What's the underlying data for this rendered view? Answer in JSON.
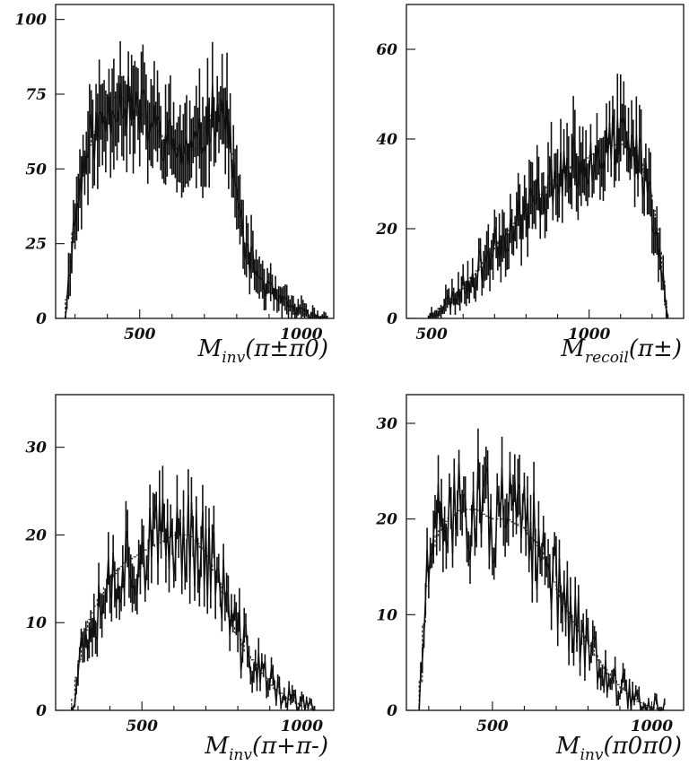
{
  "chart_data": [
    {
      "type": "line",
      "xlabel": {
        "base": "M",
        "sub": "inv",
        "arg": "(π±π0)"
      },
      "x_tick_labels": [
        "500",
        "1000"
      ],
      "y_tick_labels": [
        "0",
        "25",
        "50",
        "75",
        "100"
      ],
      "x_ticks": [
        500,
        1000
      ],
      "y_ticks": [
        0,
        25,
        50,
        75,
        100
      ],
      "xlim": [
        240,
        1100
      ],
      "ylim": [
        0,
        105
      ],
      "x_start": 270,
      "x_end": 1080,
      "bin_step": 10,
      "spread": 10,
      "seed": 11,
      "x_knots": [
        270,
        290,
        320,
        350,
        400,
        430,
        480,
        520,
        560,
        600,
        640,
        680,
        720,
        750,
        780,
        800,
        830,
        880,
        930,
        980,
        1030,
        1080
      ],
      "y_knots": [
        0,
        25,
        48,
        60,
        68,
        75,
        70,
        67,
        62,
        58,
        55,
        57,
        68,
        72,
        60,
        40,
        22,
        12,
        6,
        3,
        1,
        0
      ]
    },
    {
      "type": "line",
      "xlabel": {
        "base": "M",
        "sub": "recoil",
        "arg": "(π±)"
      },
      "x_tick_labels": [
        "500",
        "1000"
      ],
      "y_tick_labels": [
        "0",
        "20",
        "40",
        "60"
      ],
      "x_ticks": [
        500,
        1000
      ],
      "y_ticks": [
        0,
        20,
        40,
        60
      ],
      "xlim": [
        420,
        1300
      ],
      "ylim": [
        0,
        70
      ],
      "x_start": 490,
      "x_end": 1250,
      "bin_step": 10,
      "spread": 7,
      "seed": 23,
      "x_knots": [
        490,
        520,
        560,
        600,
        650,
        700,
        750,
        800,
        850,
        900,
        950,
        1000,
        1050,
        1100,
        1150,
        1190,
        1220,
        1240,
        1250
      ],
      "y_knots": [
        0,
        2,
        4,
        7,
        11,
        16,
        20,
        24,
        28,
        32,
        34,
        36,
        38,
        39,
        37,
        30,
        18,
        5,
        0
      ]
    },
    {
      "type": "line",
      "xlabel": {
        "base": "M",
        "sub": "inv",
        "arg": "(π+π-)"
      },
      "x_tick_labels": [
        "500",
        "1000"
      ],
      "y_tick_labels": [
        "0",
        "10",
        "20",
        "30"
      ],
      "x_ticks": [
        500,
        1000
      ],
      "y_ticks": [
        0,
        10,
        20,
        30
      ],
      "xlim": [
        230,
        1100
      ],
      "ylim": [
        0,
        36
      ],
      "x_start": 280,
      "x_end": 1040,
      "bin_step": 10,
      "spread": 5.5,
      "seed": 37,
      "x_knots": [
        280,
        300,
        330,
        370,
        400,
        450,
        500,
        550,
        600,
        650,
        700,
        750,
        780,
        820,
        860,
        900,
        950,
        1000,
        1040
      ],
      "y_knots": [
        0,
        5,
        10,
        13,
        15,
        17,
        18,
        19,
        20,
        20,
        18,
        14,
        10,
        7,
        5,
        3,
        1.5,
        0.5,
        0
      ]
    },
    {
      "type": "line",
      "xlabel": {
        "base": "M",
        "sub": "inv",
        "arg": "(π0π0)"
      },
      "x_tick_labels": [
        "500",
        "1000"
      ],
      "y_tick_labels": [
        "0",
        "10",
        "20",
        "30"
      ],
      "x_ticks": [
        500,
        1000
      ],
      "y_ticks": [
        0,
        10,
        20,
        30
      ],
      "xlim": [
        230,
        1100
      ],
      "ylim": [
        0,
        33
      ],
      "x_start": 270,
      "x_end": 1040,
      "bin_step": 10,
      "spread": 5.5,
      "seed": 51,
      "x_knots": [
        270,
        290,
        320,
        360,
        400,
        450,
        500,
        550,
        600,
        650,
        700,
        740,
        780,
        820,
        860,
        900,
        950,
        1000,
        1040
      ],
      "y_knots": [
        0,
        12,
        18,
        20,
        21,
        21,
        20,
        20,
        19,
        17,
        13,
        10,
        8,
        6,
        4,
        2.5,
        1,
        0.3,
        0
      ]
    }
  ]
}
